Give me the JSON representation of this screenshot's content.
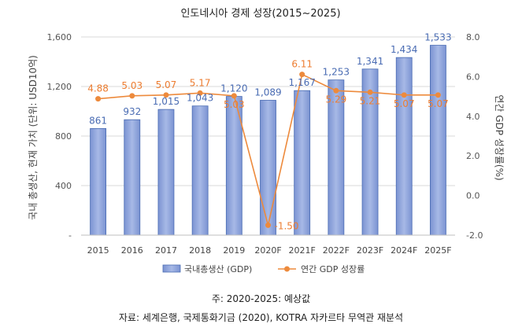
{
  "chart_data": {
    "type": "bar+line",
    "title": "인도네시아 경제 성장(2015~2025)",
    "categories": [
      "2015",
      "2016",
      "2017",
      "2018",
      "2019",
      "2020F",
      "2021F",
      "2022F",
      "2023F",
      "2024F",
      "2025F"
    ],
    "series": [
      {
        "name": "국내총생산 (GDP)",
        "type": "bar",
        "axis": "left",
        "values": [
          861,
          932,
          1015,
          1043,
          1120,
          1089,
          1167,
          1253,
          1341,
          1434,
          1533
        ],
        "labels": [
          "861",
          "932",
          "1,015",
          "1,043",
          "1,120",
          "1,089",
          "1,167",
          "1,253",
          "1,341",
          "1,434",
          "1,533"
        ]
      },
      {
        "name": "연간 GDP 성장률",
        "type": "line",
        "axis": "right",
        "values": [
          4.88,
          5.03,
          5.07,
          5.17,
          5.03,
          -1.5,
          6.11,
          5.29,
          5.21,
          5.07,
          5.07
        ],
        "labels": [
          "4.88",
          "5.03",
          "5.07",
          "5.17",
          "5.03",
          "-1.50",
          "6.11",
          "5.29",
          "5.21",
          "5.07",
          "5.07"
        ]
      }
    ],
    "ylabel_left": "국내 총생산, 현재 가치 (단위: USD10억)",
    "ylabel_right": "연간 GDP 성장률(%)",
    "ylim_left": [
      0,
      1600
    ],
    "ylim_right": [
      -2,
      8
    ],
    "yticks_left": [
      "-",
      "400",
      "800",
      "1,200",
      "1,600"
    ],
    "yticks_right": [
      "-2.0",
      "0.0",
      "2.0",
      "4.0",
      "6.0",
      "8.0"
    ],
    "legend_position": "bottom",
    "grid": true
  },
  "notes": {
    "forecast": "주: 2020-2025: 예상값",
    "source": "자료: 세계은행, 국제통화기금 (2020), KOTRA 자카르타 무역관 재분석"
  },
  "colors": {
    "bar_fill": "#8fa6dc",
    "bar_stroke": "#4a6cb3",
    "line": "#ed8a3c",
    "bar_label": "#4a6cb3",
    "line_label": "#ed7d31",
    "grid": "#d9d9d9",
    "plot_bg": "#ffffff"
  }
}
